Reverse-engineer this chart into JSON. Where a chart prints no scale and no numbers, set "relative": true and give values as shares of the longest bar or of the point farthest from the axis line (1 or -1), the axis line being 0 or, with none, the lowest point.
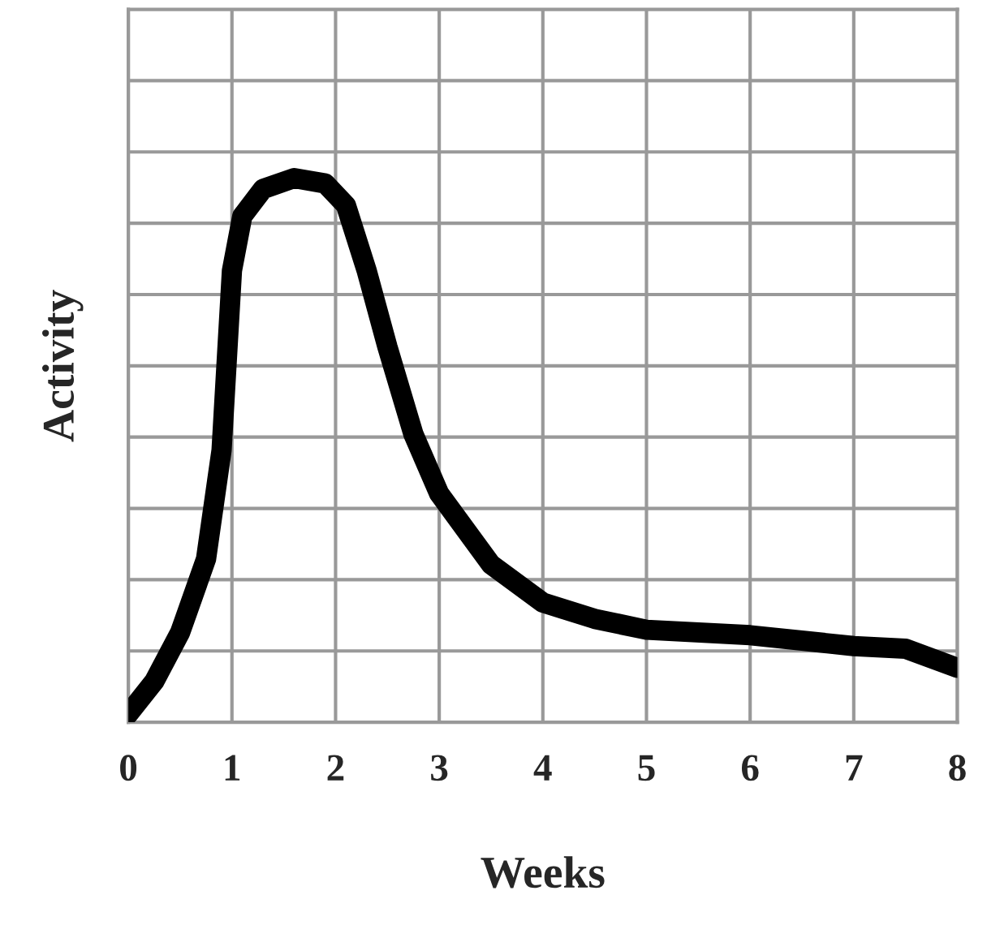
{
  "chart_data": {
    "type": "line",
    "xlabel": "Weeks",
    "ylabel": "Activity",
    "relative": true,
    "x": [
      0,
      0.25,
      0.5,
      0.75,
      0.9,
      1.0,
      1.1,
      1.3,
      1.6,
      1.9,
      2.1,
      2.3,
      2.5,
      2.75,
      3.0,
      3.5,
      4.0,
      4.5,
      5.0,
      6.0,
      7.0,
      7.5,
      8.0
    ],
    "series": [
      {
        "color": "#000000",
        "values": [
          0.015,
          0.075,
          0.165,
          0.3,
          0.5,
          0.83,
          0.93,
          0.98,
          1.0,
          0.99,
          0.95,
          0.83,
          0.69,
          0.53,
          0.42,
          0.29,
          0.22,
          0.19,
          0.17,
          0.16,
          0.14,
          0.135,
          0.1
        ]
      }
    ],
    "xlim": [
      0,
      8
    ],
    "xticks": [
      0,
      1,
      2,
      3,
      4,
      5,
      6,
      7,
      8
    ],
    "grid": true,
    "line_style": "solid",
    "marker": "none"
  }
}
